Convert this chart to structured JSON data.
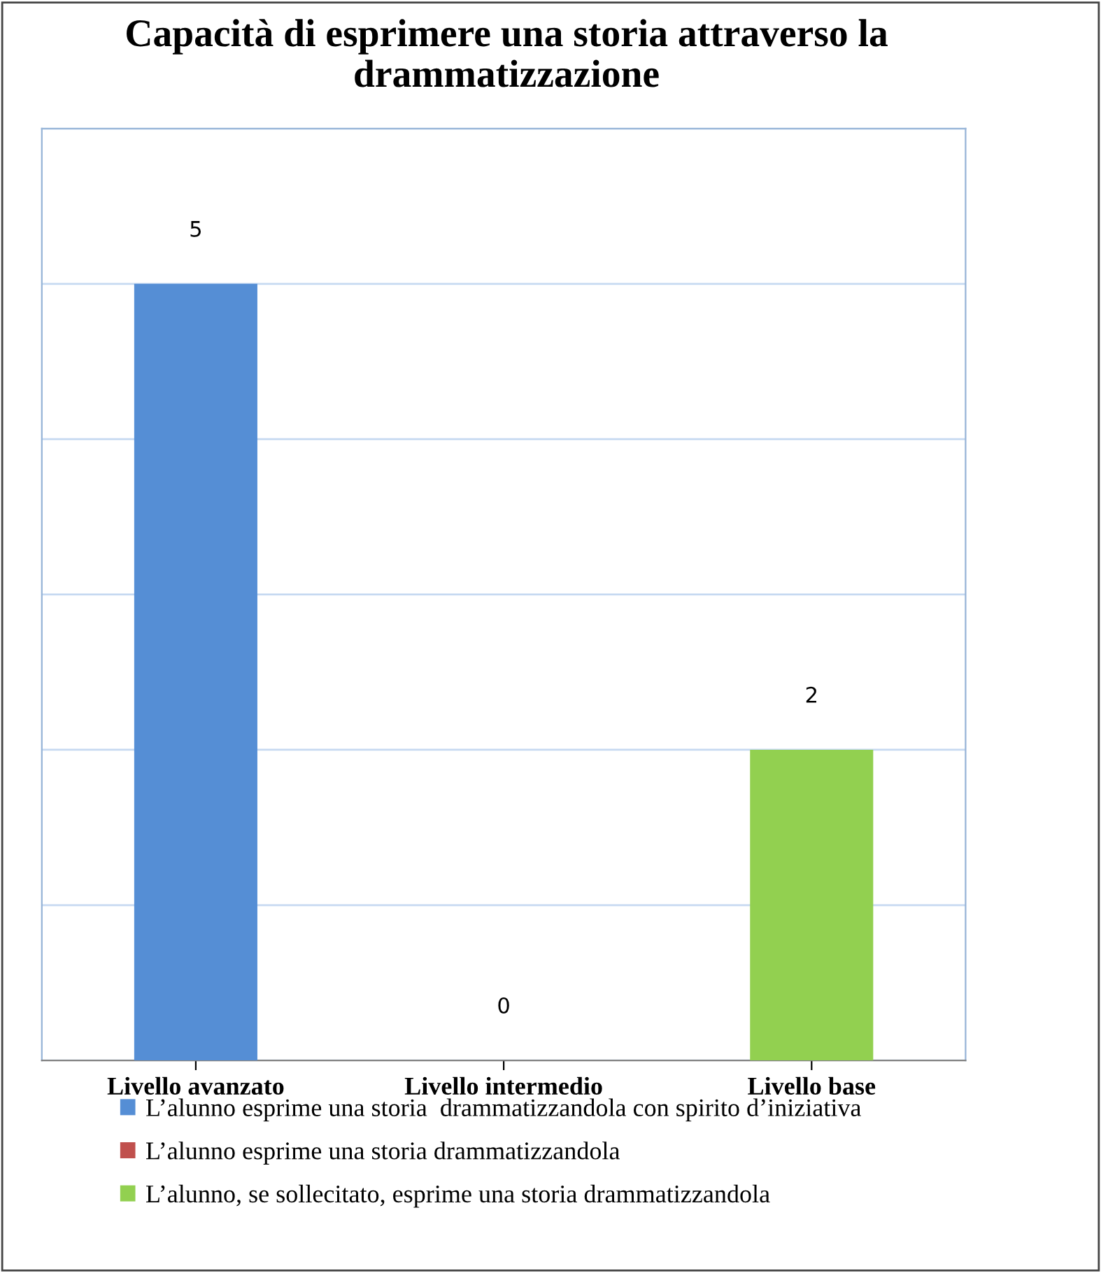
{
  "chart_data": {
    "type": "bar",
    "title": "Capacità di esprimere una storia attraverso la drammatizzazione",
    "categories": [
      "Livello avanzato",
      "Livello intermedio",
      "Livello base"
    ],
    "series": [
      {
        "name": "L’alunno esprime una storia  drammatizzandola con spirito d’iniziativa",
        "color": "#558ed5",
        "values": [
          5,
          null,
          null
        ]
      },
      {
        "name": "L’alunno esprime una storia drammatizzandola",
        "color": "#c0504d",
        "values": [
          null,
          0,
          null
        ]
      },
      {
        "name": "L’alunno, se sollecitato, esprime una storia drammatizzandola",
        "color": "#92d050",
        "values": [
          null,
          null,
          2
        ]
      }
    ],
    "ylim": [
      0,
      6
    ],
    "yticks": [
      {
        "value": 0,
        "label": null
      },
      {
        "value": 1,
        "label": null
      },
      {
        "value": 2,
        "label": null
      },
      {
        "value": 3,
        "label": null
      },
      {
        "value": 4,
        "label": null
      },
      {
        "value": 5,
        "label": null
      },
      {
        "value": 6,
        "label": null
      }
    ],
    "grid": "y",
    "tick_labels": "x",
    "data_labels": true,
    "legend": "bottom"
  }
}
